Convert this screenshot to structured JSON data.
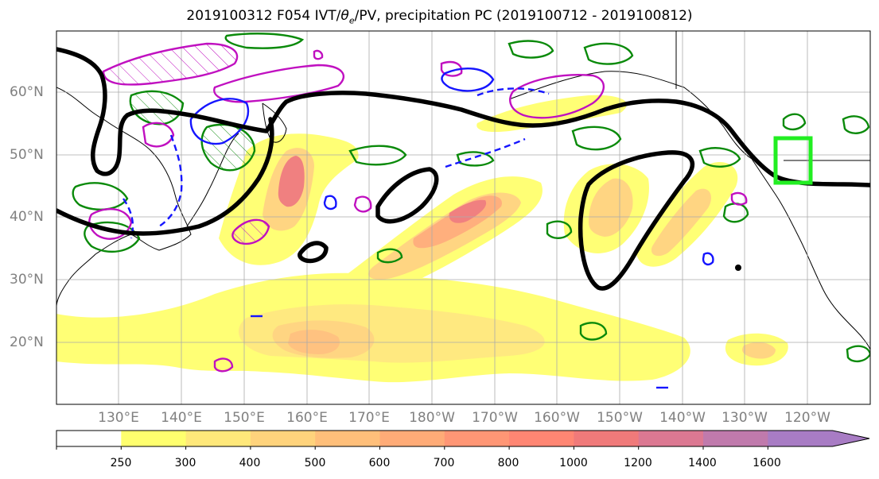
{
  "title": {
    "date": "2019100312",
    "forecast": "F054",
    "fields_prefix": "IVT/",
    "theta_symbol": "θ",
    "theta_sub": "e",
    "fields_suffix": "/PV, precipitation PC (2019100712 - 2019100812)"
  },
  "lat_labels": [
    "60°N",
    "50°N",
    "40°N",
    "30°N",
    "20°N"
  ],
  "lon_labels": [
    "130°E",
    "140°E",
    "150°E",
    "160°E",
    "170°E",
    "180°W",
    "170°W",
    "160°W",
    "150°W",
    "140°W",
    "130°W",
    "120°W"
  ],
  "colorbar": {
    "ticks": [
      "250",
      "300",
      "400",
      "500",
      "600",
      "700",
      "800",
      "1000",
      "1200",
      "1400",
      "1600"
    ],
    "colors": [
      "#ffff6e",
      "#ffe87a",
      "#ffd37c",
      "#ffbf7a",
      "#ffab77",
      "#ff9675",
      "#ff8673",
      "#f07a7a",
      "#dc7892",
      "#c07aac",
      "#a87cc4"
    ],
    "below_color": "#ffffff"
  },
  "contour_colors": {
    "thick_line": "#000000",
    "green": "#0a8a0a",
    "blue": "#1515ff",
    "magenta": "#c010c0",
    "target_box": "#22ee22"
  }
}
